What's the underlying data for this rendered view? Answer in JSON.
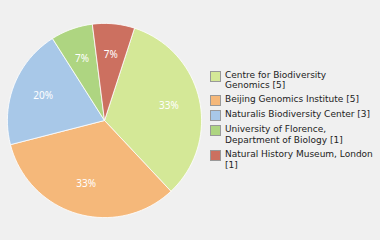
{
  "chart_data": {
    "type": "pie",
    "categories": [
      "Centre for Biodiversity\nGenomics [5]",
      "Beijing Genomics Institute [5]",
      "Naturalis Biodiversity Center [3]",
      "University of Florence,\nDepartment of Biology [1]",
      "Natural History Museum, London [1]"
    ],
    "values": [
      33,
      33,
      20,
      7,
      7
    ],
    "value_labels": [
      "33%",
      "33%",
      "20%",
      "7%",
      "7%"
    ],
    "colors": [
      "#d4e897",
      "#f5b87a",
      "#a8c8e8",
      "#aed581",
      "#cc7060"
    ],
    "data_labels": true,
    "legend": "right"
  }
}
